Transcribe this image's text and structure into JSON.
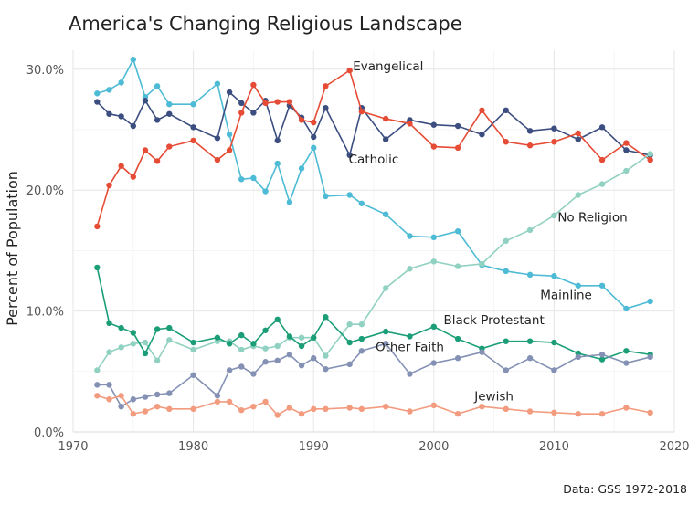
{
  "chart_data": {
    "type": "line",
    "title": "America's Changing Religious Landscape",
    "ylabel": "Percent of Population",
    "xlabel": "",
    "caption": "Data: GSS 1972-2018",
    "xlim": [
      1970,
      2020
    ],
    "ylim": [
      0,
      32
    ],
    "x_ticks": [
      "1970",
      "1980",
      "1990",
      "2000",
      "2010",
      "2020"
    ],
    "y_ticks": [
      "0.0%",
      "10.0%",
      "20.0%",
      "30.0%"
    ],
    "grid": true,
    "legend": "direct labels",
    "x": [
      1972,
      1973,
      1974,
      1975,
      1976,
      1977,
      1978,
      1980,
      1982,
      1983,
      1984,
      1985,
      1986,
      1987,
      1988,
      1989,
      1990,
      1991,
      1993,
      1994,
      1996,
      1998,
      2000,
      2002,
      2004,
      2006,
      2008,
      2010,
      2012,
      2014,
      2016,
      2018
    ],
    "series": [
      {
        "name": "Mainline",
        "color": "#4DBBD5",
        "label_at": [
          2011,
          11
        ],
        "values": [
          28.0,
          28.3,
          28.9,
          30.8,
          27.7,
          28.6,
          27.1,
          27.1,
          28.8,
          24.6,
          20.9,
          21.0,
          19.9,
          22.2,
          19.0,
          21.8,
          23.5,
          19.5,
          19.6,
          18.9,
          18.0,
          16.2,
          16.1,
          16.6,
          13.8,
          13.3,
          13.0,
          12.9,
          12.1,
          12.1,
          10.2,
          10.8
        ]
      },
      {
        "name": "Catholic",
        "color": "#3C4E80",
        "label_at": [
          1995,
          22.2
        ],
        "values": [
          27.3,
          26.3,
          26.1,
          25.3,
          27.4,
          25.8,
          26.3,
          25.2,
          24.3,
          28.1,
          27.2,
          26.4,
          27.4,
          24.1,
          27.0,
          26.0,
          24.4,
          26.8,
          22.9,
          26.8,
          24.2,
          25.8,
          25.4,
          25.3,
          24.6,
          26.6,
          24.9,
          25.1,
          24.2,
          25.2,
          23.3,
          22.9
        ]
      },
      {
        "name": "Evangelical",
        "color": "#E64B35",
        "label_at": [
          1996.2,
          29.9
        ],
        "values": [
          17.0,
          20.4,
          22.0,
          21.1,
          23.3,
          22.4,
          23.6,
          24.1,
          22.5,
          23.3,
          26.4,
          28.7,
          27.2,
          27.3,
          27.3,
          25.8,
          25.6,
          28.6,
          29.9,
          26.5,
          25.9,
          25.5,
          23.6,
          23.5,
          26.6,
          24.0,
          23.7,
          24.0,
          24.7,
          22.5,
          23.9,
          22.5
        ]
      },
      {
        "name": "No Religion",
        "color": "#91D1C2",
        "label_at": [
          2013.2,
          17.4
        ],
        "values": [
          5.1,
          6.6,
          7.0,
          7.3,
          7.4,
          5.9,
          7.6,
          6.8,
          7.5,
          7.5,
          6.8,
          7.1,
          6.9,
          7.1,
          7.8,
          7.8,
          7.8,
          6.3,
          8.9,
          8.9,
          11.9,
          13.5,
          14.1,
          13.7,
          13.9,
          15.8,
          16.7,
          17.9,
          19.6,
          20.5,
          21.6,
          23.0
        ]
      },
      {
        "name": "Black Protestant",
        "color": "#1B9E77",
        "label_at": [
          2005,
          8.9
        ],
        "values": [
          13.6,
          9.0,
          8.6,
          8.2,
          6.5,
          8.5,
          8.6,
          7.4,
          7.8,
          7.3,
          8.0,
          7.3,
          8.4,
          9.3,
          7.9,
          7.1,
          7.8,
          9.5,
          7.4,
          7.7,
          8.3,
          7.9,
          8.7,
          7.7,
          6.9,
          7.5,
          7.5,
          7.4,
          6.5,
          6.0,
          6.7,
          6.4
        ]
      },
      {
        "name": "Other Faith",
        "color": "#8491B4",
        "label_at": [
          1998,
          6.7
        ],
        "values": [
          3.9,
          3.9,
          2.1,
          2.7,
          2.9,
          3.1,
          3.2,
          4.7,
          3.0,
          5.1,
          5.4,
          4.8,
          5.8,
          5.9,
          6.4,
          5.5,
          6.1,
          5.2,
          5.6,
          6.7,
          7.3,
          4.8,
          5.7,
          6.1,
          6.6,
          5.1,
          6.1,
          5.1,
          6.2,
          6.4,
          5.7,
          6.2
        ]
      },
      {
        "name": "Jewish",
        "color": "#F39B7F",
        "label_at": [
          2005,
          2.6
        ],
        "values": [
          3.0,
          2.7,
          3.0,
          1.5,
          1.7,
          2.1,
          1.9,
          1.9,
          2.5,
          2.5,
          1.8,
          2.1,
          2.5,
          1.4,
          2.0,
          1.5,
          1.9,
          1.9,
          2.0,
          1.9,
          2.1,
          1.7,
          2.2,
          1.5,
          2.1,
          1.9,
          1.7,
          1.6,
          1.5,
          1.5,
          2.0,
          1.6
        ]
      }
    ]
  }
}
